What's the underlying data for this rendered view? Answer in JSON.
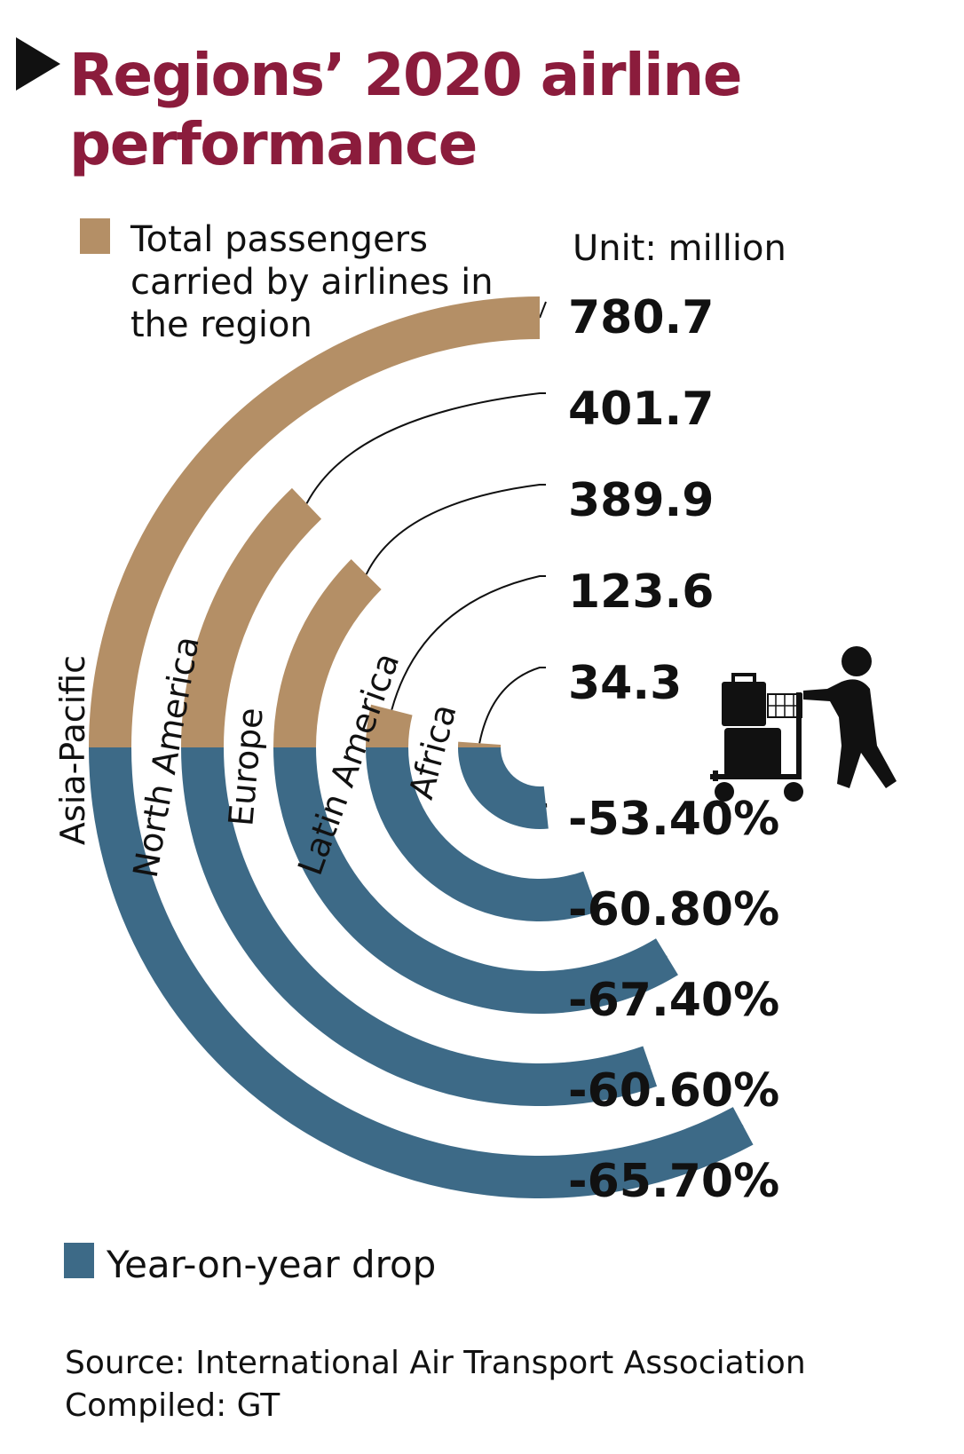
{
  "title": "Regions’ 2020 airline performance",
  "legend": {
    "passengers": "Total passengers carried by airlines in the region",
    "drop": "Year-on-year drop"
  },
  "unit": "Unit: million",
  "source": "Source: International Air Transport Association",
  "compiled": "Compiled: GT",
  "colors": {
    "title": "#8b1c3c",
    "passengers": "#b48f66",
    "drop": "#3d6a87",
    "text": "#111111"
  },
  "icons": [
    "luggage-cart-icon"
  ],
  "chart_data": {
    "type": "radial-bar",
    "categories": [
      "Asia-Pacific",
      "North America",
      "Europe",
      "Latin America",
      "Africa"
    ],
    "series": [
      {
        "name": "Total passengers carried by airlines in the region",
        "values": [
          780.7,
          401.7,
          389.9,
          123.6,
          34.3
        ],
        "labels": [
          "780.7",
          "401.7",
          "389.9",
          "123.6",
          "34.3"
        ]
      },
      {
        "name": "Year-on-year drop",
        "values": [
          -65.7,
          -60.6,
          -67.4,
          -60.8,
          -53.4
        ],
        "labels": [
          "-65.70%",
          "-60.60%",
          "-67.40%",
          "-60.80%",
          "-53.40%"
        ]
      }
    ],
    "unit": "million",
    "passenger_scale_max": 780.7,
    "drop_scale_max_percent": 100
  }
}
